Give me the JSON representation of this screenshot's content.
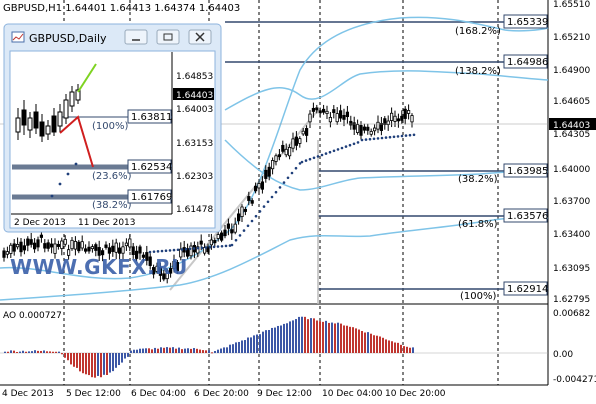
{
  "colors": {
    "background": "#ffffff",
    "axis": "#000000",
    "grid_dash": "#000000",
    "fib_line": "#33496e",
    "bands": "#7fc4e8",
    "candles": "#000000",
    "parabolic_sar": "#1f3f7a",
    "ao_up": "#c0352f",
    "ao_down": "#3c57a6",
    "price_tag_bg": "#000000",
    "price_tag_fg": "#ffffff",
    "watermark": "#3a5fa8",
    "window_bg": "#ffffff",
    "window_border": "#8db3dd",
    "window_title_bg": "#dce9f7"
  },
  "main_chart": {
    "header": "GBPUSD,H1  1.64401 1.64413 1.64374 1.64403",
    "price_axis_labels": [
      "1.65510",
      "1.65210",
      "1.64900",
      "1.64605",
      "1.64305",
      "1.64000",
      "1.63700",
      "1.63400",
      "1.63095",
      "1.62795"
    ],
    "current_price": "1.64403",
    "time_axis_labels": [
      "4 Dec 2013",
      "5 Dec 12:00",
      "6 Dec 04:00",
      "6 Dec 20:00",
      "9 Dec 12:00",
      "10 Dec 04:00",
      "10 Dec 20:00"
    ],
    "fib_levels": [
      {
        "pct": "(168.2%)",
        "price": "1.65339"
      },
      {
        "pct": "(138.2%)",
        "price": "1.64986"
      },
      {
        "pct": "(38.2%)",
        "price": "1.63985"
      },
      {
        "pct": "(61.8%)",
        "price": "1.63576"
      },
      {
        "pct": "(100%)",
        "price": "1.62914"
      }
    ],
    "watermark": "WWW.GKFX.RU"
  },
  "ao_panel": {
    "label": "AO 0.000727",
    "axis_labels": [
      "0.00682",
      "0.00",
      "-0.004271"
    ]
  },
  "daily_window": {
    "title": "GBPUSD,Daily",
    "title_icon": "chart-window-icon",
    "buttons": [
      "minimize-icon",
      "restore-icon",
      "close-icon"
    ],
    "price_axis_labels": [
      "1.64853",
      "1.64003",
      "1.63153",
      "1.62303",
      "1.61478"
    ],
    "current_price": "1.64403",
    "time_axis_labels": [
      "2 Dec 2013",
      "11 Dec 2013"
    ],
    "fib_levels": [
      {
        "pct": "(100%)",
        "price": "1.63811"
      },
      {
        "pct": "(23.6%)",
        "price": "1.62534"
      },
      {
        "pct": "(38.2%)",
        "price": "1.61769"
      }
    ]
  }
}
